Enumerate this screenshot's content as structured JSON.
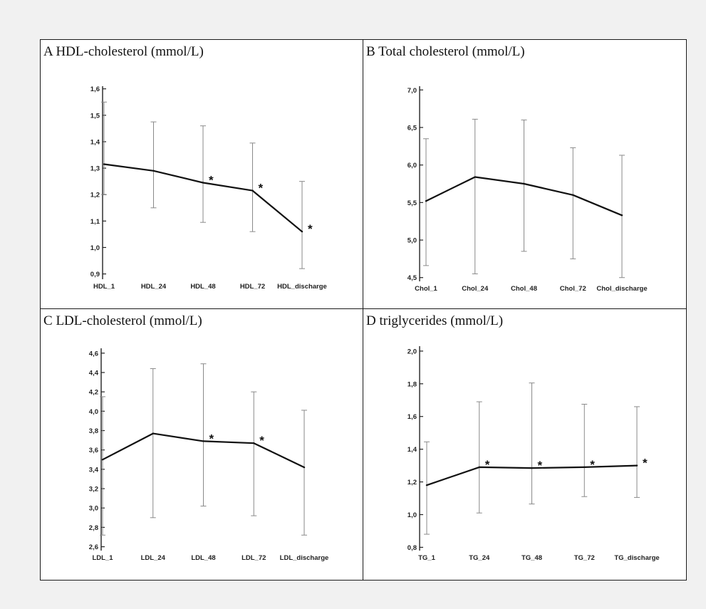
{
  "panels": [
    {
      "letter": "A",
      "title": "HDL-cholesterol (mmol/L)"
    },
    {
      "letter": "B",
      "title": "Total cholesterol (mmol/L)"
    },
    {
      "letter": "C",
      "title": "LDL-cholesterol (mmol/L)"
    },
    {
      "letter": "D",
      "title": "triglycerides (mmol/L)"
    }
  ],
  "chart_data": [
    {
      "type": "line",
      "title": "A HDL-cholesterol (mmol/L)",
      "categories": [
        "HDL_1",
        "HDL_24",
        "HDL_48",
        "HDL_72",
        "HDL_discharge"
      ],
      "values": [
        1.315,
        1.29,
        1.245,
        1.215,
        1.06
      ],
      "error_low": [
        1.2,
        1.15,
        1.095,
        1.06,
        0.92
      ],
      "error_high": [
        1.55,
        1.475,
        1.46,
        1.395,
        1.25
      ],
      "significance": [
        "",
        "",
        "*",
        "*",
        "*"
      ],
      "ylim": [
        0.88,
        1.61
      ],
      "yticks": [
        0.9,
        1.0,
        1.1,
        1.2,
        1.3,
        1.4,
        1.5,
        1.6
      ],
      "ytick_labels": [
        "0,9",
        "1,0",
        "1,1",
        "1,2",
        "1,3",
        "1,4",
        "1,5",
        "1,6"
      ]
    },
    {
      "type": "line",
      "title": "B Total cholesterol (mmol/L)",
      "categories": [
        "Chol_1",
        "Chol_24",
        "Chol_48",
        "Chol_72",
        "Chol_discharge"
      ],
      "values": [
        5.52,
        5.84,
        5.75,
        5.6,
        5.33
      ],
      "error_low": [
        4.66,
        4.55,
        4.85,
        4.75,
        4.5
      ],
      "error_high": [
        6.35,
        6.61,
        6.6,
        6.23,
        6.13
      ],
      "significance": [
        "",
        "",
        "",
        "",
        ""
      ],
      "ylim": [
        4.45,
        7.05
      ],
      "yticks": [
        4.5,
        5.0,
        5.5,
        6.0,
        6.5,
        7.0
      ],
      "ytick_labels": [
        "4,5",
        "5,0",
        "5,5",
        "6,0",
        "6,5",
        "7,0"
      ]
    },
    {
      "type": "line",
      "title": "C LDL-cholesterol (mmol/L)",
      "categories": [
        "LDL_1",
        "LDL_24",
        "LDL_48",
        "LDL_72",
        "LDL_discharge"
      ],
      "values": [
        3.5,
        3.77,
        3.69,
        3.67,
        3.42
      ],
      "error_low": [
        2.72,
        2.9,
        3.02,
        2.92,
        2.72
      ],
      "error_high": [
        4.15,
        4.44,
        4.49,
        4.2,
        4.01
      ],
      "significance": [
        "",
        "",
        "*",
        "*",
        ""
      ],
      "ylim": [
        2.56,
        4.65
      ],
      "yticks": [
        2.6,
        2.8,
        3.0,
        3.2,
        3.4,
        3.6,
        3.8,
        4.0,
        4.2,
        4.4,
        4.6
      ],
      "ytick_labels": [
        "2,6",
        "2,8",
        "3,0",
        "3,2",
        "3,4",
        "3,6",
        "3,8",
        "4,0",
        "4,2",
        "4,4",
        "4,6"
      ]
    },
    {
      "type": "line",
      "title": "D triglycerides (mmol/L)",
      "categories": [
        "TG_1",
        "TG_24",
        "TG_48",
        "TG_72",
        "TG_discharge"
      ],
      "values": [
        1.18,
        1.29,
        1.285,
        1.29,
        1.3
      ],
      "error_low": [
        0.88,
        1.01,
        1.065,
        1.11,
        1.105
      ],
      "error_high": [
        1.445,
        1.69,
        1.805,
        1.675,
        1.66
      ],
      "significance": [
        "",
        "*",
        "*",
        "*",
        "*"
      ],
      "ylim": [
        0.78,
        2.03
      ],
      "yticks": [
        0.8,
        1.0,
        1.2,
        1.4,
        1.6,
        1.8,
        2.0
      ],
      "ytick_labels": [
        "0,8",
        "1,0",
        "1,2",
        "1,4",
        "1,6",
        "1,8",
        "2,0"
      ]
    }
  ]
}
